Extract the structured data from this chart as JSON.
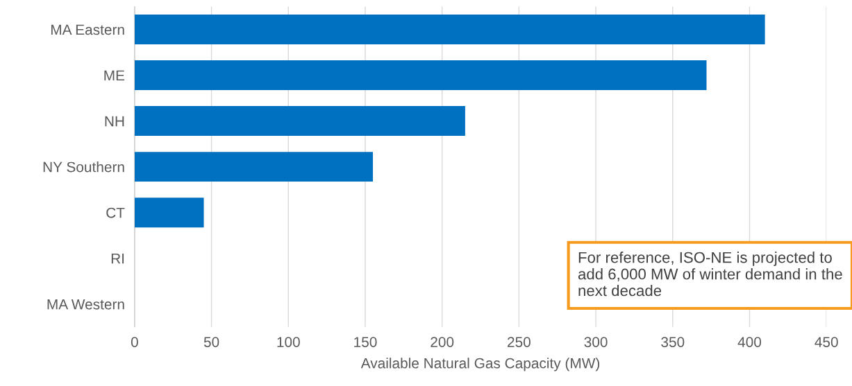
{
  "chart_data": {
    "type": "bar",
    "orientation": "horizontal",
    "categories": [
      "MA Eastern",
      "ME",
      "NH",
      "NY Southern",
      "CT",
      "RI",
      "MA Western"
    ],
    "values": [
      410,
      372,
      215,
      155,
      45,
      0,
      0
    ],
    "color": "#0070c0",
    "xlabel": "Available Natural Gas Capacity (MW)",
    "xlim": [
      0,
      450
    ],
    "xticks": [
      0,
      50,
      100,
      150,
      200,
      250,
      300,
      350,
      400,
      450
    ],
    "grid": "x",
    "annotations": [
      "For reference, ISO-NE is projected to add 6,000 MW of winter demand in the next decade"
    ]
  }
}
